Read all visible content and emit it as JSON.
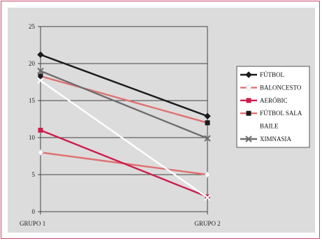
{
  "chart_data": {
    "type": "line",
    "categories": [
      "GRUPO 1",
      "GRUPO 2"
    ],
    "ylim": [
      0,
      25
    ],
    "yticks": [
      0,
      5,
      10,
      15,
      20,
      25
    ],
    "grid": true,
    "legend_position": "right",
    "series": [
      {
        "name": "FÚTBOL",
        "values": [
          21.2,
          12.9
        ],
        "color": "#1a1a1a",
        "marker": "diamond-filled"
      },
      {
        "name": "BALONCESTO",
        "values": [
          8.0,
          5.0
        ],
        "color": "#e07070",
        "marker": "diamond-white"
      },
      {
        "name": "AERÓBIC",
        "values": [
          11.0,
          2.0
        ],
        "color": "#cc1f4e",
        "marker": "square"
      },
      {
        "name": "FÚTBOL SALA",
        "values": [
          18.3,
          12.0
        ],
        "color": "#e07070",
        "marker": "square-dark"
      },
      {
        "name": "BAILE",
        "values": [
          17.7,
          1.9
        ],
        "color": "#ffffff",
        "marker": "x"
      },
      {
        "name": "XIMNASIA",
        "values": [
          19.0,
          9.9
        ],
        "color": "#6e6e6e",
        "marker": "x"
      }
    ]
  }
}
